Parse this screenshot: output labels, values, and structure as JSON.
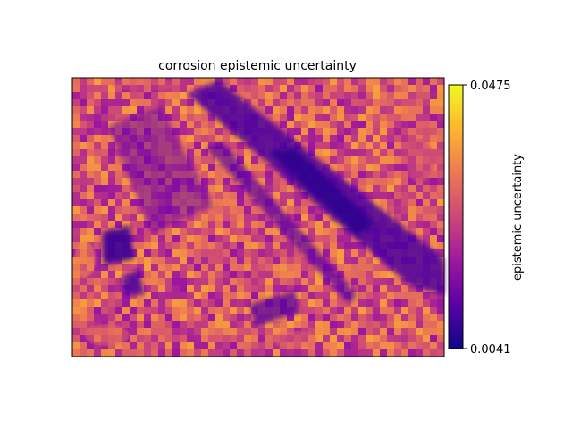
{
  "chart_data": {
    "type": "heatmap",
    "title": "corrosion epistemic uncertainty",
    "xlabel": "",
    "ylabel": "",
    "colorbar": {
      "label": "epistemic uncertainty",
      "min": 0.0041,
      "max": 0.0475,
      "ticks": [
        "0.0475",
        "0.0041"
      ],
      "colormap": "plasma"
    },
    "axes_ticks": "none",
    "description_values": {
      "background_level": 0.028,
      "low_region_level": 0.012,
      "high_speckle_level": 0.04
    }
  },
  "colors": {
    "cmap_stops": [
      "#0d0887",
      "#5c01a6",
      "#9c179e",
      "#cc4778",
      "#ed7953",
      "#fdb42f",
      "#f0f921"
    ]
  }
}
